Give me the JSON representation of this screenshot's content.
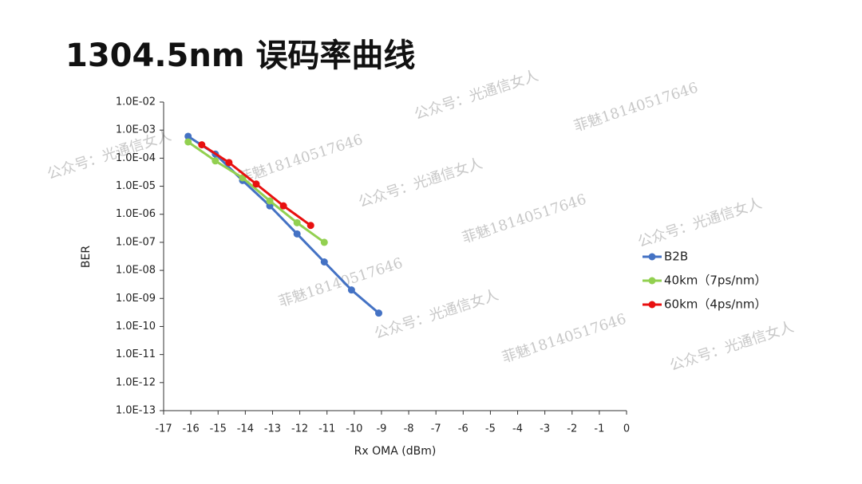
{
  "chart_data": {
    "type": "line",
    "title": "1304.5nm 误码率曲线",
    "x_label": "Rx  OMA (dBm)",
    "y_label": "BER",
    "log_y": true,
    "legend": "right",
    "xlim": [
      -17,
      0
    ],
    "xticks": [
      -17,
      -16,
      -15,
      -14,
      -13,
      -12,
      -11,
      -10,
      -9,
      -8,
      -7,
      -6,
      -5,
      -4,
      -3,
      -2,
      -1,
      0
    ],
    "ylim": [
      1e-13,
      0.01
    ],
    "yticks": [
      {
        "value": 1e-13,
        "label": "1.0E-13"
      },
      {
        "value": 1e-12,
        "label": "1.0E-12"
      },
      {
        "value": 1e-11,
        "label": "1.0E-11"
      },
      {
        "value": 1e-10,
        "label": "1.0E-10"
      },
      {
        "value": 1e-09,
        "label": "1.0E-09"
      },
      {
        "value": 1e-08,
        "label": "1.0E-08"
      },
      {
        "value": 1e-07,
        "label": "1.0E-07"
      },
      {
        "value": 1e-06,
        "label": "1.0E-06"
      },
      {
        "value": 1e-05,
        "label": "1.0E-05"
      },
      {
        "value": 0.0001,
        "label": "1.0E-04"
      },
      {
        "value": 0.001,
        "label": "1.0E-03"
      },
      {
        "value": 0.01,
        "label": "1.0E-02"
      }
    ],
    "series": [
      {
        "name": "B2B",
        "color": "#4472c4",
        "x": [
          -16.1,
          -15.1,
          -14.1,
          -13.1,
          -12.1,
          -11.1,
          -10.1,
          -9.1
        ],
        "values": [
          0.0006,
          0.00014,
          1.6e-05,
          2e-06,
          2e-07,
          2e-08,
          2e-09,
          3e-10
        ]
      },
      {
        "name": "40km（7ps/nm）",
        "color": "#92d050",
        "x": [
          -16.1,
          -15.1,
          -14.1,
          -13.1,
          -12.1,
          -11.1
        ],
        "values": [
          0.00038,
          8e-05,
          2e-05,
          3e-06,
          5e-07,
          1e-07
        ]
      },
      {
        "name": "60km（4ps/nm）",
        "color": "#e81010",
        "x": [
          -15.6,
          -14.6,
          -13.6,
          -12.6,
          -11.6
        ],
        "values": [
          0.0003,
          7e-05,
          1.2e-05,
          2e-06,
          4e-07
        ]
      }
    ],
    "watermarks": [
      "公众号：光通信女人",
      "菲魅18140517646",
      "公众号：光通信女人",
      "菲魅18140517646",
      "公众号：光通信女人",
      "菲魅18140517646",
      "公众号：光通信女人",
      "菲魅18140517646",
      "公众号：光通信女人",
      "菲魅18140517646",
      "公众号：光通信女人"
    ]
  }
}
